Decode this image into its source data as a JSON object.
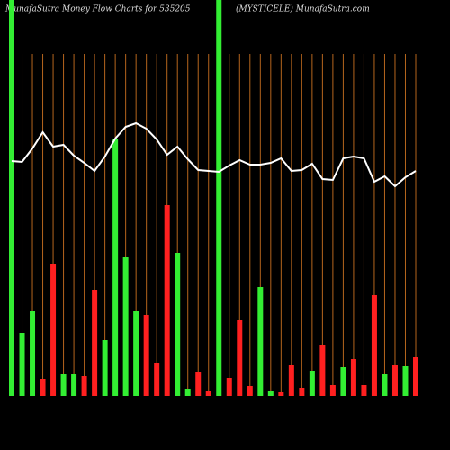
{
  "chart_data": {
    "type": "bar",
    "title": "MunafaSutra  Money Flow  Charts for 535205",
    "subtitle": "(MYSTICELE) MunafaSutra.com",
    "categories": [
      null,
      null,
      null,
      null,
      null,
      null,
      null,
      null,
      null,
      null,
      null,
      null,
      null,
      null,
      null,
      null,
      null,
      null,
      null,
      null,
      null,
      null,
      null,
      null,
      null,
      null,
      null,
      null,
      null,
      null,
      null,
      null,
      null,
      null,
      null,
      null,
      null,
      null,
      null,
      null
    ],
    "values": [
      440,
      70,
      95,
      19,
      147,
      24,
      24,
      22,
      118,
      62,
      285,
      154,
      95,
      90,
      37,
      212,
      159,
      8,
      27,
      6,
      440,
      20,
      84,
      11,
      121,
      6,
      4,
      35,
      9,
      28,
      57,
      12,
      32,
      41,
      12,
      112,
      24,
      35,
      33,
      43
    ],
    "bar_colors": [
      "#33ee33",
      "#33ee33",
      "#33ee33",
      "#ff2020",
      "#ff2020",
      "#33ee33",
      "#33ee33",
      "#ff2020",
      "#ff2020",
      "#33ee33",
      "#33ee33",
      "#33ee33",
      "#33ee33",
      "#ff2020",
      "#ff2020",
      "#ff2020",
      "#33ee33",
      "#33ee33",
      "#ff2020",
      "#ff2020",
      "#33ee33",
      "#ff2020",
      "#ff2020",
      "#ff2020",
      "#33ee33",
      "#33ee33",
      "#ff2020",
      "#ff2020",
      "#ff2020",
      "#33ee33",
      "#ff2020",
      "#ff2020",
      "#33ee33",
      "#ff2020",
      "#ff2020",
      "#ff2020",
      "#33ee33",
      "#ff2020",
      "#33ee33",
      "#ff2020"
    ],
    "ylim": [
      0,
      440
    ],
    "line": {
      "color": "#ffffff",
      "axis": "y2",
      "values": [
        261,
        260,
        275,
        293,
        277,
        279,
        267,
        259,
        250,
        266,
        286,
        299,
        303,
        297,
        285,
        268,
        277,
        263,
        251,
        250,
        249,
        256,
        262,
        257,
        257,
        259,
        264,
        250,
        251,
        258,
        241,
        240,
        264,
        266,
        264,
        238,
        244,
        233,
        243,
        250
      ]
    },
    "y2lim": [
      0,
      440
    ],
    "category_line_color": "#b5651d"
  }
}
